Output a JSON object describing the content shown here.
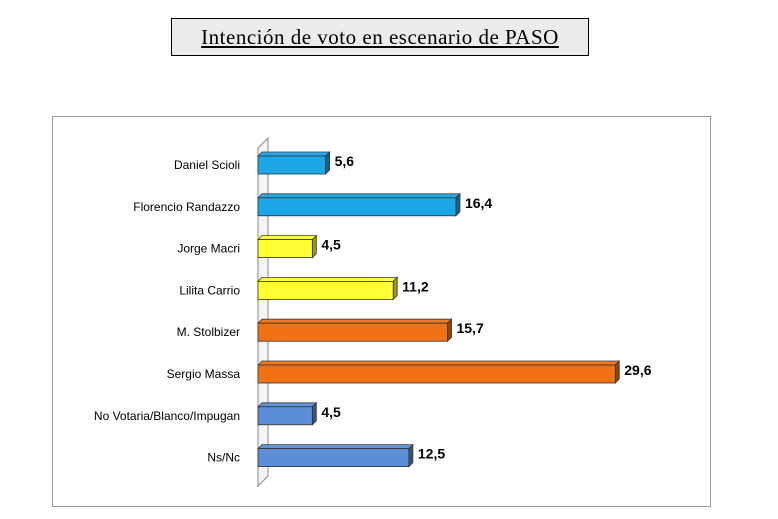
{
  "chart_data": {
    "type": "bar",
    "orientation": "horizontal",
    "title": "Intención de voto en escenario de PASO",
    "categories": [
      "Daniel Scioli",
      "Florencio Randazzo",
      "Jorge Macri",
      "Lilita Carrio",
      "M. Stolbizer",
      "Sergio Massa",
      "No Votaria/Blanco/Impugan",
      "Ns/Nc"
    ],
    "values": [
      5.6,
      16.4,
      4.5,
      11.2,
      15.7,
      29.6,
      4.5,
      12.5
    ],
    "value_labels": [
      "5,6",
      "16,4",
      "4,5",
      "11,2",
      "15,7",
      "29,6",
      "4,5",
      "12,5"
    ],
    "bar_colors": [
      "#1ea7e8",
      "#1ea7e8",
      "#ffff33",
      "#ffff33",
      "#f07214",
      "#f07214",
      "#5b8ed6",
      "#5b8ed6"
    ],
    "xlim": [
      0,
      30
    ],
    "grid": false,
    "legend": "none"
  }
}
